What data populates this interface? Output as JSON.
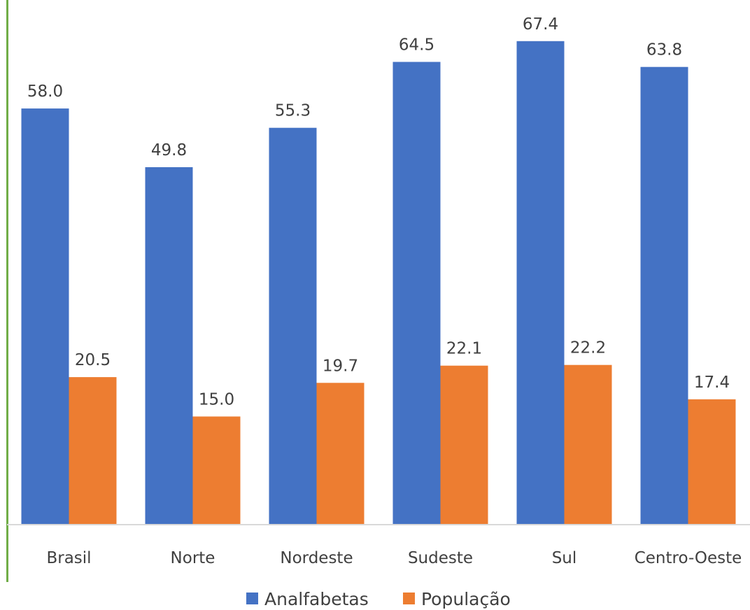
{
  "chart_data": {
    "type": "bar",
    "categories": [
      "Brasil",
      "Norte",
      "Nordeste",
      "Sudeste",
      "Sul",
      "Centro-Oeste"
    ],
    "series": [
      {
        "name": "Analfabetas",
        "values": [
          58.0,
          49.8,
          55.3,
          64.5,
          67.4,
          63.8
        ],
        "color": "#4472c4"
      },
      {
        "name": "População",
        "values": [
          20.5,
          15.0,
          19.7,
          22.1,
          22.2,
          17.4
        ],
        "color": "#ed7d31"
      }
    ],
    "ylim": [
      0,
      80
    ],
    "grid": false,
    "data_labels": true,
    "legend_position": "bottom",
    "accent_color": "#70ad47"
  }
}
